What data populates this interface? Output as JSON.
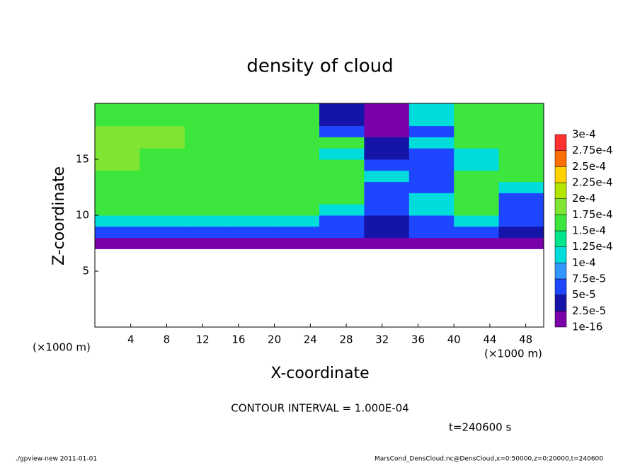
{
  "chart_data": {
    "type": "heatmap",
    "title": "density of cloud",
    "x_label": "X-coordinate",
    "y_label": "Z-coordinate",
    "x_unit": "(×1000 m)",
    "x_unit_right": "(×1000 m)",
    "xlim": [
      0,
      50
    ],
    "ylim": [
      0,
      20
    ],
    "xticks": [
      4,
      8,
      12,
      16,
      20,
      24,
      28,
      32,
      36,
      40,
      44,
      48
    ],
    "yticks": [
      5,
      10,
      15
    ],
    "x": [
      0,
      5,
      10,
      15,
      20,
      25,
      30,
      35,
      40,
      45,
      50
    ],
    "z": [
      7,
      8,
      9,
      10,
      11,
      12,
      13,
      14,
      15,
      16,
      17,
      18,
      19,
      20
    ],
    "values": [
      [
        1e-05,
        1e-05,
        1e-05,
        1e-05,
        1e-05,
        1e-05,
        1e-05,
        1e-05,
        1e-05,
        1e-05
      ],
      [
        6e-05,
        6e-05,
        6e-05,
        6e-05,
        6e-05,
        6e-05,
        3e-05,
        6e-05,
        6e-05,
        3e-05
      ],
      [
        0.00011,
        0.00011,
        0.00011,
        0.00011,
        0.00011,
        6e-05,
        3e-05,
        6e-05,
        0.00011,
        6e-05
      ],
      [
        0.00016,
        0.00016,
        0.00016,
        0.00016,
        0.00016,
        0.00011,
        6e-05,
        0.00011,
        0.00016,
        6e-05
      ],
      [
        0.00016,
        0.00016,
        0.00016,
        0.00016,
        0.00016,
        0.00016,
        6e-05,
        0.00011,
        0.00016,
        6e-05
      ],
      [
        0.00016,
        0.00016,
        0.00016,
        0.00016,
        0.00016,
        0.00016,
        6e-05,
        6e-05,
        0.00016,
        0.00011
      ],
      [
        0.00016,
        0.00016,
        0.00016,
        0.00016,
        0.00016,
        0.00016,
        0.00011,
        6e-05,
        0.00016,
        0.00016
      ],
      [
        0.00018,
        0.00016,
        0.00016,
        0.00016,
        0.00016,
        0.00016,
        6e-05,
        6e-05,
        0.00011,
        0.00016
      ],
      [
        0.00018,
        0.00016,
        0.00016,
        0.00016,
        0.00016,
        0.00011,
        3e-05,
        6e-05,
        0.00011,
        0.00016
      ],
      [
        0.00018,
        0.00018,
        0.00016,
        0.00016,
        0.00016,
        0.00016,
        3e-05,
        0.00011,
        0.00016,
        0.00016
      ],
      [
        0.00018,
        0.00018,
        0.00016,
        0.00016,
        0.00016,
        6e-05,
        1e-05,
        6e-05,
        0.00016,
        0.00016
      ],
      [
        0.00016,
        0.00016,
        0.00016,
        0.00016,
        0.00016,
        3e-05,
        1e-05,
        0.00011,
        0.00016,
        0.00016
      ],
      [
        0.00016,
        0.00016,
        0.00016,
        0.00016,
        0.00016,
        3e-05,
        1e-05,
        0.00011,
        0.00016,
        0.00016
      ]
    ],
    "levels": [
      {
        "value": 1e-16,
        "label": "1e-16"
      },
      {
        "value": 2.5e-05,
        "label": "2.5e-5"
      },
      {
        "value": 5e-05,
        "label": "5e-5"
      },
      {
        "value": 7.5e-05,
        "label": "7.5e-5"
      },
      {
        "value": 0.0001,
        "label": "1e-4"
      },
      {
        "value": 0.000125,
        "label": "1.25e-4"
      },
      {
        "value": 0.00015,
        "label": "1.5e-4"
      },
      {
        "value": 0.000175,
        "label": "1.75e-4"
      },
      {
        "value": 0.0002,
        "label": "2e-4"
      },
      {
        "value": 0.000225,
        "label": "2.25e-4"
      },
      {
        "value": 0.00025,
        "label": "2.5e-4"
      },
      {
        "value": 0.000275,
        "label": "2.75e-4"
      },
      {
        "value": 0.0003,
        "label": "3e-4"
      }
    ],
    "colors": [
      "#7a00aa",
      "#1414a8",
      "#1e46ff",
      "#3296ff",
      "#00dcdc",
      "#00e68c",
      "#3ce63c",
      "#7ee632",
      "#b4e600",
      "#ffd200",
      "#ff6e00",
      "#ff3030"
    ],
    "contour_note": "CONTOUR INTERVAL = 1.000E-04",
    "time_label": "t=240600 s",
    "footer_left": "./gpview-new   2011-01-01",
    "footer_right": "MarsCond_DensCloud.nc@DensCloud,x=0:50000,z=0:20000,t=240600"
  }
}
